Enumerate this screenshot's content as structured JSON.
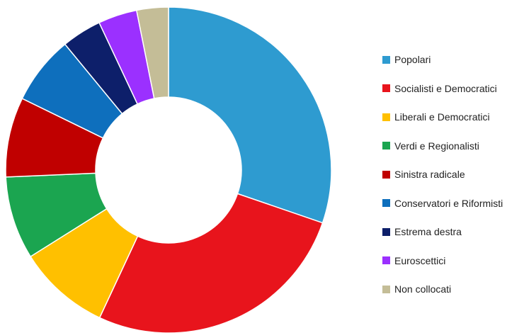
{
  "chart_data": {
    "type": "pie",
    "variant": "donut",
    "legend_position": "right",
    "series": [
      {
        "name": "Popolari",
        "value": 29.8,
        "color": "#2E9BD0"
      },
      {
        "name": "Socialisti e Democratici",
        "value": 26.3,
        "color": "#E8141C"
      },
      {
        "name": "Liberali e Democratici",
        "value": 9.0,
        "color": "#FFC000"
      },
      {
        "name": "Verdi e Regionalisti",
        "value": 8.1,
        "color": "#1BA550"
      },
      {
        "name": "Sinistra radicale",
        "value": 7.8,
        "color": "#C00000"
      },
      {
        "name": "Conservatori e Riformisti",
        "value": 6.7,
        "color": "#0E6FBD"
      },
      {
        "name": "Estrema destra",
        "value": 3.9,
        "color": "#0D1F6A"
      },
      {
        "name": "Euroscettici",
        "value": 3.8,
        "color": "#9B30FF"
      },
      {
        "name": "Non collocati",
        "value": 3.1,
        "color": "#C4BD97"
      }
    ]
  }
}
